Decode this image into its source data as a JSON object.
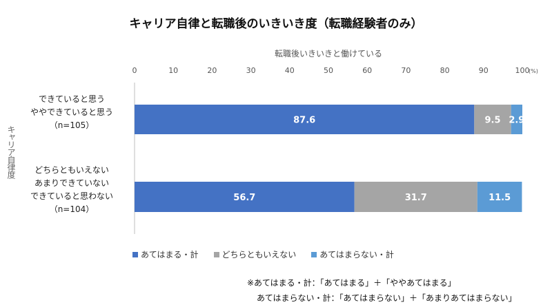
{
  "title": "キャリア自律と転職後のいきいき度（転職経験者のみ）",
  "chart_data": {
    "type": "bar",
    "orientation": "horizontal",
    "stacked": true,
    "title": "キャリア自律と転職後のいきいき度（転職経験者のみ）",
    "xlabel": "転職後いきいきと働けている",
    "ylabel": "キャリア自律度",
    "xlim": [
      0,
      100
    ],
    "xticks": [
      "0",
      "10",
      "20",
      "30",
      "40",
      "50",
      "60",
      "70",
      "80",
      "90",
      "100"
    ],
    "xunit": "(%)",
    "categories": [
      {
        "lines": [
          "できていると思う",
          "ややできていると思う",
          "（n=105）"
        ]
      },
      {
        "lines": [
          "どちらともいえない",
          "あまりできていない",
          "できていると思わない",
          "（n=104）"
        ]
      }
    ],
    "series": [
      {
        "name": "あてはまる・計",
        "color": "#4472c4",
        "values": [
          87.6,
          56.7
        ],
        "labels": [
          "87.6",
          "56.7"
        ]
      },
      {
        "name": "どちらともいえない",
        "color": "#a5a5a5",
        "values": [
          9.5,
          31.7
        ],
        "labels": [
          "9.5",
          "31.7"
        ]
      },
      {
        "name": "あてはまらない・計",
        "color": "#5b9bd5",
        "values": [
          2.9,
          11.5
        ],
        "labels": [
          "2.9",
          "11.5"
        ]
      }
    ],
    "legend_position": "bottom-left",
    "grid": false
  },
  "notes": [
    "※あてはまる・計：「あてはまる」＋「ややあてはまる」",
    "あてはまらない・計：「あてはまらない」＋「あまりあてはまらない」"
  ]
}
